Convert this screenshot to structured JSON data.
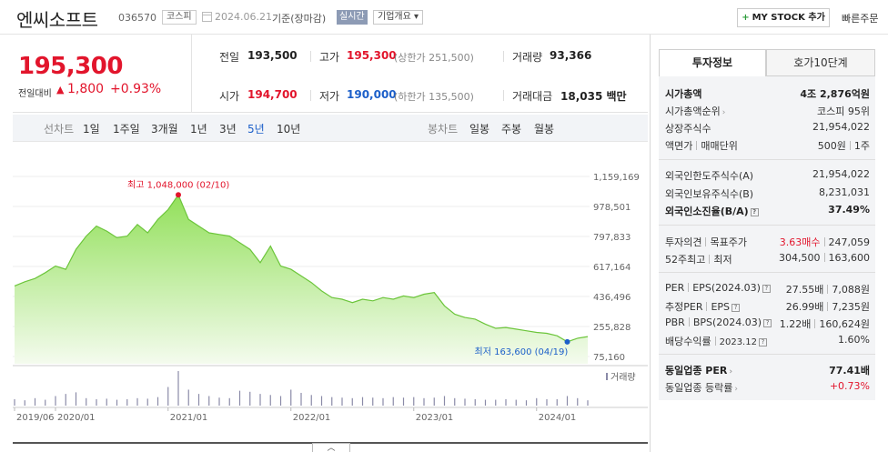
{
  "header": {
    "stock_name": "엔씨소프트",
    "stock_code": "036570",
    "market": "코스피",
    "date": "2024.06.21",
    "basis": "기준(장마감)",
    "realtime_badge": "실시간",
    "overview_label": "기업개요 ▾",
    "mystock_label": "MY STOCK 추가",
    "quick_order": "빠른주문",
    "icons": [
      "calendar-icon",
      "plus-icon"
    ]
  },
  "price": {
    "current": "195,300",
    "change_label": "전일대비",
    "change_value": "1,800",
    "change_pct": "+0.93%",
    "change_direction": "up",
    "prev_close_label": "전일",
    "prev_close": "193,500",
    "high_label": "고가",
    "high": "195,300",
    "upper_limit": "(상한가 251,500)",
    "volume_label": "거래량",
    "volume": "93,366",
    "open_label": "시가",
    "open": "194,700",
    "low_label": "저가",
    "low": "190,000",
    "lower_limit": "(하한가 135,500)",
    "amount_label": "거래대금",
    "amount": "18,035 백만"
  },
  "period_bar": {
    "line_label": "선차트",
    "periods": [
      "1일",
      "1주일",
      "3개월",
      "1년",
      "3년",
      "5년",
      "10년"
    ],
    "selected_period": "5년",
    "candle_label": "봉차트",
    "candles": [
      "일봉",
      "주봉",
      "월봉"
    ]
  },
  "chart_data": {
    "type": "area",
    "y_ticks": [
      "1,159,169",
      "978,501",
      "797,833",
      "617,164",
      "436,496",
      "255,828",
      "75,160"
    ],
    "ylim": [
      75160,
      1159169
    ],
    "x_ticks": [
      "2019/06",
      "2020/01",
      "2021/01",
      "2022/01",
      "2023/01",
      "2024/01"
    ],
    "high_annotation": "최고 1,048,000 (02/10)",
    "low_annotation": "최저 163,600 (04/19)",
    "volume_label": "거래량",
    "series": [
      {
        "x": [
          "2019/06",
          "2019/08",
          "2019/10",
          "2019/12",
          "2020/02",
          "2020/03",
          "2020/04",
          "2020/05",
          "2020/06",
          "2020/07",
          "2020/08",
          "2020/09",
          "2020/10",
          "2020/11",
          "2020/12",
          "2021/01",
          "2021/02",
          "2021/03",
          "2021/04",
          "2021/05",
          "2021/06",
          "2021/07",
          "2021/08",
          "2021/09",
          "2021/10",
          "2021/11",
          "2021/12",
          "2022/01",
          "2022/02",
          "2022/03",
          "2022/04",
          "2022/05",
          "2022/06",
          "2022/07",
          "2022/08",
          "2022/09",
          "2022/10",
          "2022/11",
          "2022/12",
          "2023/01",
          "2023/02",
          "2023/03",
          "2023/04",
          "2023/05",
          "2023/06",
          "2023/07",
          "2023/08",
          "2023/09",
          "2023/10",
          "2023/11",
          "2023/12",
          "2024/01",
          "2024/02",
          "2024/03",
          "2024/04",
          "2024/05",
          "2024/06"
        ],
        "values": [
          500000,
          525000,
          545000,
          580000,
          620000,
          600000,
          720000,
          800000,
          860000,
          830000,
          790000,
          800000,
          870000,
          820000,
          900000,
          960000,
          1048000,
          900000,
          860000,
          820000,
          810000,
          800000,
          760000,
          720000,
          640000,
          740000,
          620000,
          600000,
          560000,
          520000,
          470000,
          430000,
          420000,
          400000,
          420000,
          410000,
          430000,
          420000,
          440000,
          430000,
          450000,
          460000,
          380000,
          330000,
          310000,
          300000,
          270000,
          245000,
          250000,
          240000,
          230000,
          220000,
          215000,
          200000,
          163600,
          185000,
          195300
        ]
      }
    ],
    "volume_values": [
      12,
      10,
      14,
      11,
      18,
      22,
      25,
      14,
      12,
      13,
      11,
      12,
      14,
      13,
      16,
      35,
      65,
      30,
      22,
      18,
      15,
      14,
      28,
      26,
      22,
      20,
      18,
      30,
      24,
      20,
      18,
      16,
      15,
      14,
      16,
      15,
      14,
      16,
      15,
      16,
      14,
      15,
      18,
      14,
      13,
      12,
      11,
      11,
      12,
      11,
      10,
      14,
      12,
      12,
      18,
      14,
      10
    ]
  },
  "right_panel": {
    "tabs": [
      "투자정보",
      "호가10단계"
    ],
    "market_cap_label": "시가총액",
    "market_cap": "4조 2,876억원",
    "market_cap_rank_label": "시가총액순위",
    "market_cap_rank": "코스피 95위",
    "shares_label": "상장주식수",
    "shares": "21,954,022",
    "par_label": "액면가",
    "trade_unit_label": "매매단위",
    "par_value": "500원",
    "trade_unit": "1주",
    "foreign_limit_label": "외국인한도주식수(A)",
    "foreign_limit": "21,954,022",
    "foreign_hold_label": "외국인보유주식수(B)",
    "foreign_hold": "8,231,031",
    "foreign_rate_label": "외국인소진율(B/A)",
    "foreign_rate": "37.49%",
    "opinion_label": "투자의견",
    "target_label": "목표주가",
    "opinion": "3.63매수",
    "target_price": "247,059",
    "week52_label": "52주최고",
    "week52_low_label": "최저",
    "week52_high": "304,500",
    "week52_low": "163,600",
    "per_label": "PER",
    "eps_label": "EPS",
    "eps_period": "(2024.03)",
    "per": "27.55배",
    "eps": "7,088원",
    "est_per_label": "추정PER",
    "est_eps_label": "EPS",
    "est_per": "26.99배",
    "est_eps": "7,235원",
    "pbr_label": "PBR",
    "bps_label": "BPS",
    "bps_period": "(2024.03)",
    "pbr": "1.22배",
    "bps": "160,624원",
    "dividend_label": "배당수익률",
    "dividend_period": "2023.12",
    "dividend": "1.60%",
    "industry_per_label": "동일업종 PER",
    "industry_per": "77.41배",
    "industry_rate_label": "동일업종 등락률",
    "industry_rate": "+0.73%"
  }
}
